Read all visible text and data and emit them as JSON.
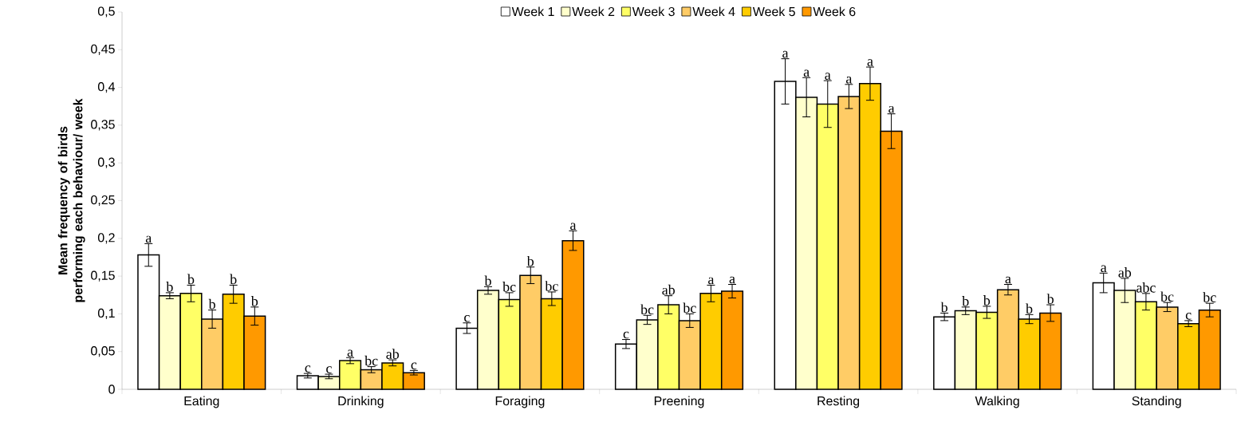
{
  "chart_data": {
    "type": "bar",
    "ylabel": "Mean frequency of birds performing each behaviour/ week",
    "categories": [
      "Eating",
      "Drinking",
      "Foraging",
      "Preening",
      "Resting",
      "Walking",
      "Standing"
    ],
    "ylim": [
      0,
      0.5
    ],
    "yticks": [
      0,
      {
        "value": 0.05,
        "label": "0,05"
      },
      {
        "value": 0.1,
        "label": "0,1"
      },
      {
        "value": 0.15,
        "label": "0,15"
      },
      {
        "value": 0.2,
        "label": "0,2"
      },
      {
        "value": 0.25,
        "label": "0,25"
      },
      {
        "value": 0.3,
        "label": "0,3"
      },
      {
        "value": 0.35,
        "label": "0,35"
      },
      {
        "value": 0.4,
        "label": "0,4"
      },
      {
        "value": 0.45,
        "label": "0,45"
      },
      {
        "value": 0.5,
        "label": "0,5"
      }
    ],
    "legend": "top",
    "series": [
      {
        "name": "Week 1",
        "color": "#ffffff",
        "values": [
          0.178,
          0.018,
          0.081,
          0.06,
          0.408,
          0.096,
          0.141
        ],
        "errors": [
          0.015,
          0.003,
          0.007,
          0.006,
          0.03,
          0.005,
          0.013
        ],
        "value_labels": [
          "a",
          "c",
          "c",
          "c",
          "a",
          "b",
          "a"
        ]
      },
      {
        "name": "Week 2",
        "color": "#ffffcc",
        "values": [
          0.124,
          0.017,
          0.131,
          0.092,
          0.387,
          0.104,
          0.131
        ],
        "errors": [
          0.004,
          0.003,
          0.005,
          0.006,
          0.026,
          0.005,
          0.016
        ],
        "value_labels": [
          "b",
          "c",
          "b",
          "bc",
          "a",
          "b",
          "ab"
        ]
      },
      {
        "name": "Week 3",
        "color": "#ffff66",
        "values": [
          0.127,
          0.038,
          0.119,
          0.112,
          0.378,
          0.102,
          0.116
        ],
        "errors": [
          0.011,
          0.004,
          0.009,
          0.012,
          0.031,
          0.008,
          0.011
        ],
        "value_labels": [
          "b",
          "a",
          "bc",
          "ab",
          "a",
          "b",
          "abc"
        ]
      },
      {
        "name": "Week 4",
        "color": "#ffcc66",
        "values": [
          0.093,
          0.026,
          0.151,
          0.091,
          0.388,
          0.132,
          0.109
        ],
        "errors": [
          0.012,
          0.004,
          0.011,
          0.009,
          0.016,
          0.007,
          0.006
        ],
        "value_labels": [
          "b",
          "bc",
          "b",
          "bc",
          "a",
          "a",
          "bc"
        ]
      },
      {
        "name": "Week 5",
        "color": "#ffcc00",
        "values": [
          0.126,
          0.035,
          0.12,
          0.127,
          0.405,
          0.093,
          0.087
        ],
        "errors": [
          0.012,
          0.004,
          0.009,
          0.011,
          0.022,
          0.006,
          0.004
        ],
        "value_labels": [
          "b",
          "ab",
          "bc",
          "a",
          "a",
          "b",
          "c"
        ]
      },
      {
        "name": "Week 6",
        "color": "#ff9900",
        "values": [
          0.097,
          0.022,
          0.197,
          0.13,
          0.342,
          0.101,
          0.105
        ],
        "errors": [
          0.012,
          0.003,
          0.013,
          0.009,
          0.023,
          0.011,
          0.009
        ],
        "value_labels": [
          "b",
          "c",
          "a",
          "a",
          "a",
          "b",
          "bc"
        ]
      }
    ]
  }
}
